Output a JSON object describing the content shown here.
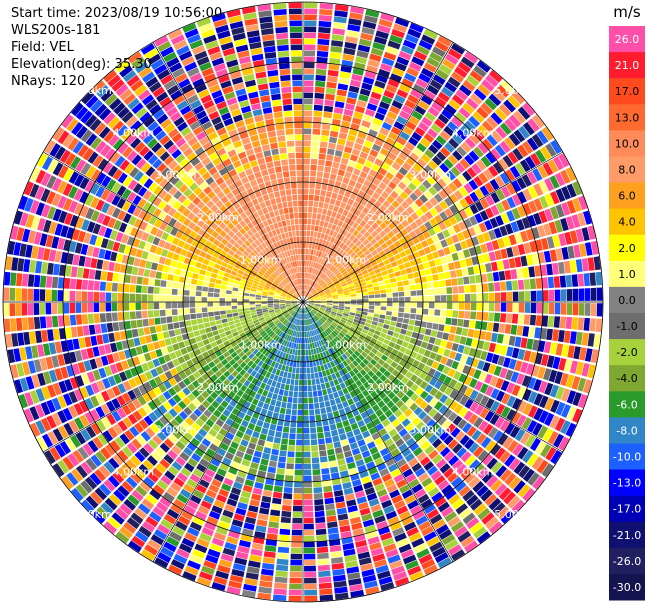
{
  "info": {
    "start_time": "Start time: 2023/08/19 10:56:00",
    "instrument": "WLS200s-181",
    "field": "Field: VEL",
    "elevation": "Elevation(deg): 35.30",
    "nrays": "NRays: 120"
  },
  "chart_data": {
    "type": "heatmap",
    "projection": "polar-ppi",
    "field": "VEL",
    "units": "m/s",
    "n_rays": 120,
    "max_range_km": 5.0,
    "range_rings_km": [
      1,
      2,
      3,
      4,
      5
    ],
    "ring_labels": [
      "1.00km",
      "2.00km",
      "3.00km",
      "4.00km",
      "5.00km"
    ],
    "colorbar": {
      "label": "m/s",
      "ticks": [
        "26.0",
        "21.0",
        "17.0",
        "13.0",
        "10.0",
        "8.0",
        "6.0",
        "4.0",
        "2.0",
        "1.0",
        "0.0",
        "-1.0",
        "-2.0",
        "-4.0",
        "-6.0",
        "-8.0",
        "-10.0",
        "-13.0",
        "-17.0",
        "-21.0",
        "-26.0",
        "-30.0"
      ],
      "colors": [
        "#ff4fa8",
        "#ff1c2e",
        "#ff4a1e",
        "#ff6a30",
        "#ff8a5a",
        "#ff9b66",
        "#ffa01e",
        "#ffc400",
        "#ffff00",
        "#ffff7a",
        "#828282",
        "#6e6e6e",
        "#a8d23c",
        "#7fa832",
        "#2a9a2a",
        "#3186c8",
        "#1e60ff",
        "#0000ff",
        "#0000b4",
        "#101070",
        "#202060",
        "#141450"
      ]
    },
    "colors": {
      "background": "#ffffff",
      "grid": "#000000"
    }
  }
}
